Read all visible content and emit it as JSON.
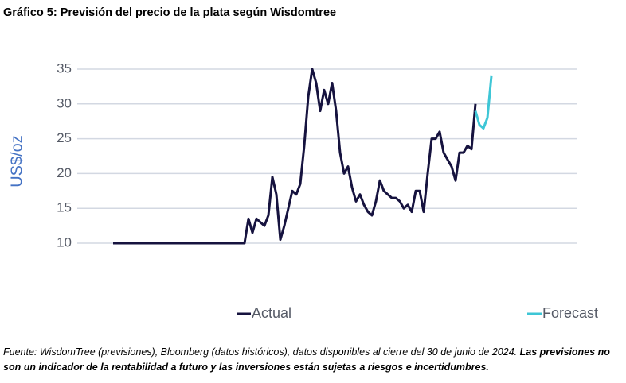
{
  "chart_data": {
    "type": "line",
    "title": "Gráfico 5: Previsión del precio de la plata según Wisdomtree",
    "y_label": "US$/oz",
    "series": [
      {
        "name": "Actual",
        "color": "#16133f",
        "values": [
          10,
          10,
          10,
          10,
          10,
          10,
          10,
          10,
          10,
          10,
          10,
          10,
          10,
          10,
          10,
          10,
          10,
          10,
          10,
          10,
          10,
          10,
          10,
          10,
          10,
          10,
          10,
          10,
          10,
          10,
          10,
          10,
          10,
          10,
          13.5,
          11.5,
          13.5,
          13,
          12.5,
          14,
          19.5,
          17,
          10.5,
          12.5,
          15,
          17.5,
          17,
          18.5,
          24,
          31,
          35,
          33,
          29,
          32,
          30,
          33,
          29,
          23,
          20,
          21,
          18,
          16,
          17,
          15.5,
          14.5,
          14,
          16,
          19,
          17.5,
          17,
          16.5,
          16.5,
          16,
          15,
          15.5,
          14.5,
          17.5,
          17.5,
          14.5,
          20,
          25,
          25,
          26,
          23,
          22,
          21,
          19,
          23,
          23,
          24,
          23.5,
          30,
          null,
          null,
          null,
          null
        ]
      },
      {
        "name": "Forecast",
        "color": "#3ec6d6",
        "values": [
          null,
          null,
          null,
          null,
          null,
          null,
          null,
          null,
          null,
          null,
          null,
          null,
          null,
          null,
          null,
          null,
          null,
          null,
          null,
          null,
          null,
          null,
          null,
          null,
          null,
          null,
          null,
          null,
          null,
          null,
          null,
          null,
          null,
          null,
          null,
          null,
          null,
          null,
          null,
          null,
          null,
          null,
          null,
          null,
          null,
          null,
          null,
          null,
          null,
          null,
          null,
          null,
          null,
          null,
          null,
          null,
          null,
          null,
          null,
          null,
          null,
          null,
          null,
          null,
          null,
          null,
          null,
          null,
          null,
          null,
          null,
          null,
          null,
          null,
          null,
          null,
          null,
          null,
          null,
          null,
          null,
          null,
          null,
          null,
          null,
          null,
          null,
          null,
          null,
          null,
          null,
          29,
          27,
          26.5,
          28,
          34
        ]
      }
    ],
    "ylim": [
      10,
      35
    ],
    "yticks": [
      10,
      15,
      20,
      25,
      30,
      35
    ],
    "grid": true,
    "legend": "bottom",
    "source": "Fuente: WisdomTree (previsiones), Bloomberg (datos históricos), datos disponibles al cierre del 30 de junio de 2024.",
    "disclaimer": "Las previsiones no son un indicador de la rentabilidad a futuro y las inversiones están sujetas a riesgos e incertidumbres."
  }
}
